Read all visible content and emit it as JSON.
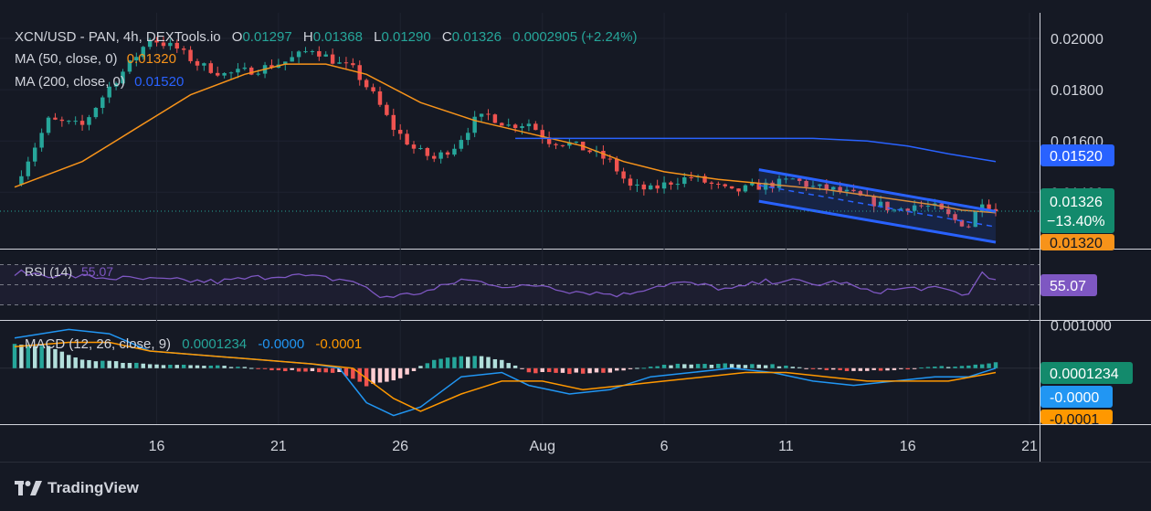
{
  "legend": {
    "symbol_line": "XCN/USD - PAN, 4h, DEXTools.io",
    "o_label": "O",
    "o_value": "0.01297",
    "h_label": "H",
    "h_value": "0.01368",
    "l_label": "L",
    "l_value": "0.01290",
    "c_label": "C",
    "c_value": "0.01326",
    "change": "0.0002905 (+2.24%)",
    "ma50_label": "MA (50, close, 0)",
    "ma50_value": "0.01320",
    "ma200_label": "MA (200, close, 0)",
    "ma200_value": "0.01520"
  },
  "price_badges": {
    "ma200": "0.01520",
    "last": "0.01326",
    "last_change": "−13.40%",
    "ma50": "0.01320"
  },
  "rsi": {
    "label": "RSI (14)",
    "value": "55.07",
    "badge": "55.07"
  },
  "macd": {
    "label": "MACD (12, 26, close, 9)",
    "hist_value": "0.0001234",
    "macd_value": "-0.0000",
    "signal_value": "-0.0001",
    "badge_hist": "0.0001234",
    "badge_macd": "-0.0000",
    "badge_signal": "-0.0001"
  },
  "branding": {
    "logo_text": "TradingView"
  },
  "colors": {
    "background": "#151924",
    "up": "#26a69a",
    "down": "#ef5350",
    "ma50": "#f7931a",
    "ma200": "#2962ff",
    "channel": "#2962ff",
    "rsi": "#7e57c2",
    "macd": "#2196f3",
    "signal": "#ff9800",
    "axis_text": "#d1d4dc",
    "grid": "#1f2330"
  },
  "chart_data": {
    "type": "candlestick",
    "pair": "XCN/USD",
    "timeframe": "4h",
    "x_ticks": [
      "16",
      "21",
      "26",
      "Aug",
      "6",
      "11",
      "16",
      "21"
    ],
    "y_ticks": [
      "0.02000",
      "0.01800",
      "0.01600",
      "0.01400"
    ],
    "macd_y_ticks": [
      "0.001000"
    ],
    "ylim": [
      0.0118,
      0.021
    ],
    "last_close": 0.01326,
    "ma50_last": 0.0132,
    "ma200_last": 0.0152,
    "change_pct_badge": -13.4,
    "rsi_last": 55.07,
    "macd_hist_last": 0.0001234,
    "macd_line_last": -0.0,
    "signal_last": -0.0001,
    "price_path": [
      [
        0,
        0.0143
      ],
      [
        5,
        0.0168
      ],
      [
        10,
        0.0166
      ],
      [
        14,
        0.0181
      ],
      [
        17,
        0.019
      ],
      [
        20,
        0.02
      ],
      [
        24,
        0.0196
      ],
      [
        27,
        0.019
      ],
      [
        31,
        0.0186
      ],
      [
        36,
        0.0188
      ],
      [
        40,
        0.0191
      ],
      [
        44,
        0.0196
      ],
      [
        48,
        0.019
      ],
      [
        50,
        0.0188
      ],
      [
        53,
        0.0178
      ],
      [
        56,
        0.0165
      ],
      [
        59,
        0.0157
      ],
      [
        62,
        0.0153
      ],
      [
        65,
        0.0158
      ],
      [
        68,
        0.0168
      ],
      [
        70,
        0.017
      ],
      [
        73,
        0.0166
      ],
      [
        76,
        0.0167
      ],
      [
        79,
        0.016
      ],
      [
        82,
        0.0159
      ],
      [
        85,
        0.0156
      ],
      [
        88,
        0.0152
      ],
      [
        91,
        0.0142
      ],
      [
        94,
        0.0141
      ],
      [
        97,
        0.0144
      ],
      [
        100,
        0.0146
      ],
      [
        103,
        0.0143
      ],
      [
        106,
        0.014
      ],
      [
        109,
        0.0142
      ],
      [
        112,
        0.0143
      ],
      [
        115,
        0.0145
      ],
      [
        118,
        0.0142
      ],
      [
        121,
        0.0141
      ],
      [
        124,
        0.0139
      ],
      [
        127,
        0.0136
      ],
      [
        130,
        0.0133
      ],
      [
        133,
        0.0135
      ],
      [
        136,
        0.0134
      ],
      [
        139,
        0.0129
      ],
      [
        141,
        0.0127
      ],
      [
        143,
        0.0137
      ],
      [
        145,
        0.0133
      ]
    ],
    "ma50_path": [
      [
        0,
        0.0142
      ],
      [
        10,
        0.0152
      ],
      [
        18,
        0.0165
      ],
      [
        26,
        0.0178
      ],
      [
        34,
        0.0186
      ],
      [
        40,
        0.019
      ],
      [
        46,
        0.019
      ],
      [
        52,
        0.0186
      ],
      [
        60,
        0.0175
      ],
      [
        68,
        0.0168
      ],
      [
        76,
        0.0163
      ],
      [
        84,
        0.0158
      ],
      [
        90,
        0.0152
      ],
      [
        96,
        0.0148
      ],
      [
        104,
        0.0145
      ],
      [
        112,
        0.0143
      ],
      [
        120,
        0.0141
      ],
      [
        128,
        0.0138
      ],
      [
        136,
        0.0135
      ],
      [
        140,
        0.0133
      ],
      [
        145,
        0.0132
      ]
    ],
    "ma200_path": [
      [
        74,
        0.0161
      ],
      [
        90,
        0.0161
      ],
      [
        104,
        0.0161
      ],
      [
        118,
        0.0161
      ],
      [
        126,
        0.016
      ],
      [
        132,
        0.0158
      ],
      [
        138,
        0.0155
      ],
      [
        145,
        0.0152
      ]
    ],
    "channel": {
      "upper_start": [
        110,
        0.01488
      ],
      "upper_end": [
        145,
        0.01325
      ],
      "lower_start": [
        110,
        0.01365
      ],
      "lower_end": [
        145,
        0.01205
      ],
      "mid_start": [
        110,
        0.01427
      ],
      "mid_end": [
        145,
        0.01265
      ]
    },
    "rsi_path": [
      [
        0,
        62
      ],
      [
        10,
        58
      ],
      [
        20,
        55
      ],
      [
        30,
        53
      ],
      [
        40,
        60
      ],
      [
        50,
        54
      ],
      [
        54,
        38
      ],
      [
        58,
        40
      ],
      [
        62,
        45
      ],
      [
        66,
        55
      ],
      [
        70,
        52
      ],
      [
        74,
        47
      ],
      [
        78,
        50
      ],
      [
        82,
        44
      ],
      [
        86,
        42
      ],
      [
        90,
        40
      ],
      [
        94,
        48
      ],
      [
        98,
        52
      ],
      [
        102,
        49
      ],
      [
        106,
        45
      ],
      [
        110,
        52
      ],
      [
        114,
        55
      ],
      [
        118,
        50
      ],
      [
        122,
        53
      ],
      [
        126,
        43
      ],
      [
        130,
        45
      ],
      [
        134,
        47
      ],
      [
        138,
        44
      ],
      [
        141,
        40
      ],
      [
        143,
        63
      ],
      [
        145,
        55.07
      ]
    ],
    "macd_hist_path": [
      [
        0,
        0.00055
      ],
      [
        5,
        0.0005
      ],
      [
        10,
        0.0002
      ],
      [
        20,
        0.0001
      ],
      [
        30,
        5e-05
      ],
      [
        40,
        -5e-05
      ],
      [
        48,
        -0.0001
      ],
      [
        52,
        -0.0004
      ],
      [
        56,
        -0.0003
      ],
      [
        62,
        0.0002
      ],
      [
        68,
        0.0003
      ],
      [
        72,
        0.0002
      ],
      [
        76,
        -0.0001
      ],
      [
        82,
        -0.00012
      ],
      [
        88,
        -0.0001
      ],
      [
        94,
        5e-05
      ],
      [
        100,
        0.0001
      ],
      [
        106,
        0.0001
      ],
      [
        112,
        8e-05
      ],
      [
        118,
        -3e-05
      ],
      [
        124,
        -5e-05
      ],
      [
        130,
        -4e-05
      ],
      [
        136,
        3e-05
      ],
      [
        140,
        5e-05
      ],
      [
        145,
        0.0001234
      ]
    ],
    "macd_line_path": [
      [
        0,
        0.0007
      ],
      [
        8,
        0.0009
      ],
      [
        14,
        0.0008
      ],
      [
        20,
        0.0004
      ],
      [
        28,
        0.0003
      ],
      [
        36,
        0.0002
      ],
      [
        44,
        0.0001
      ],
      [
        48,
        0.0
      ],
      [
        52,
        -0.0008
      ],
      [
        56,
        -0.0011
      ],
      [
        60,
        -0.0009
      ],
      [
        66,
        -0.0002
      ],
      [
        72,
        -0.0001
      ],
      [
        76,
        -0.0004
      ],
      [
        82,
        -0.0006
      ],
      [
        88,
        -0.0005
      ],
      [
        94,
        -0.0002
      ],
      [
        100,
        -0.0001
      ],
      [
        106,
        0.0
      ],
      [
        112,
        -0.0001
      ],
      [
        118,
        -0.0003
      ],
      [
        124,
        -0.0004
      ],
      [
        130,
        -0.0003
      ],
      [
        136,
        -0.0002
      ],
      [
        141,
        -0.0002
      ],
      [
        145,
        -0.0
      ]
    ],
    "signal_line_path": [
      [
        0,
        0.0005
      ],
      [
        8,
        0.0006
      ],
      [
        14,
        0.0006
      ],
      [
        20,
        0.0004
      ],
      [
        28,
        0.0003
      ],
      [
        36,
        0.0002
      ],
      [
        44,
        0.0001
      ],
      [
        50,
        0.0
      ],
      [
        56,
        -0.0007
      ],
      [
        60,
        -0.001
      ],
      [
        66,
        -0.0006
      ],
      [
        72,
        -0.0003
      ],
      [
        78,
        -0.0003
      ],
      [
        84,
        -0.0005
      ],
      [
        90,
        -0.0004
      ],
      [
        96,
        -0.0003
      ],
      [
        102,
        -0.0002
      ],
      [
        108,
        -0.0001
      ],
      [
        114,
        -0.0001
      ],
      [
        120,
        -0.0002
      ],
      [
        126,
        -0.0003
      ],
      [
        132,
        -0.0003
      ],
      [
        138,
        -0.0003
      ],
      [
        145,
        -0.0001
      ]
    ],
    "macd_ylim": [
      -0.0013,
      0.0011
    ]
  }
}
